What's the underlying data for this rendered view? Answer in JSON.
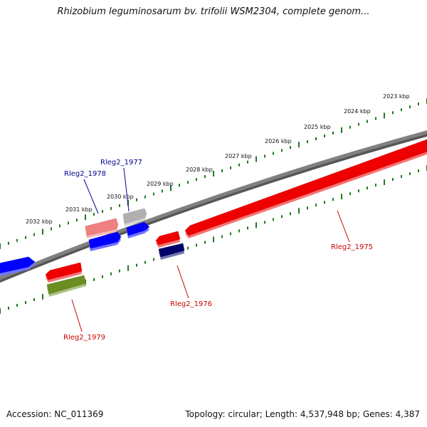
{
  "title": "Rhizobium leguminosarum bv. trifolii WSM2304, complete genom...",
  "footer": {
    "accession": "Accession: NC_011369",
    "summary": "Topology: circular; Length: 4,537,948 bp; Genes: 4,387"
  },
  "colors": {
    "backbone": "#808080",
    "tick": "#1f7a1f",
    "forward_label": "#00008b",
    "reverse_label": "#cc0000"
  },
  "scale_labels": [
    "2023 kbp",
    "2024 kbp",
    "2025 kbp",
    "2026 kbp",
    "2027 kbp",
    "2028 kbp",
    "2029 kbp",
    "2030 kbp",
    "2031 kbp",
    "2032 kbp"
  ],
  "gene_labels": [
    {
      "text": "Rleg2_1977",
      "strand": "forward"
    },
    {
      "text": "Rleg2_1978",
      "strand": "forward"
    },
    {
      "text": "Rleg2_1975",
      "strand": "reverse"
    },
    {
      "text": "Rleg2_1976",
      "strand": "reverse"
    },
    {
      "text": "Rleg2_1979",
      "strand": "reverse"
    }
  ],
  "features": [
    {
      "id": "forward-gene-blue-left",
      "color": "#0000ff"
    },
    {
      "id": "forward-gene-pink",
      "color": "#f08080"
    },
    {
      "id": "forward-gene-blue-1",
      "color": "#0000ff"
    },
    {
      "id": "forward-gene-gray",
      "color": "#b0b0b0"
    },
    {
      "id": "forward-gene-blue-2",
      "color": "#0000ff"
    },
    {
      "id": "reverse-gene-red-1979",
      "color": "#ee0000"
    },
    {
      "id": "reverse-gene-olive",
      "color": "#6b8e23"
    },
    {
      "id": "reverse-gene-red-1976",
      "color": "#ee0000"
    },
    {
      "id": "reverse-gene-navy",
      "color": "#00006b"
    },
    {
      "id": "reverse-gene-red-1975",
      "color": "#ee0000"
    }
  ]
}
